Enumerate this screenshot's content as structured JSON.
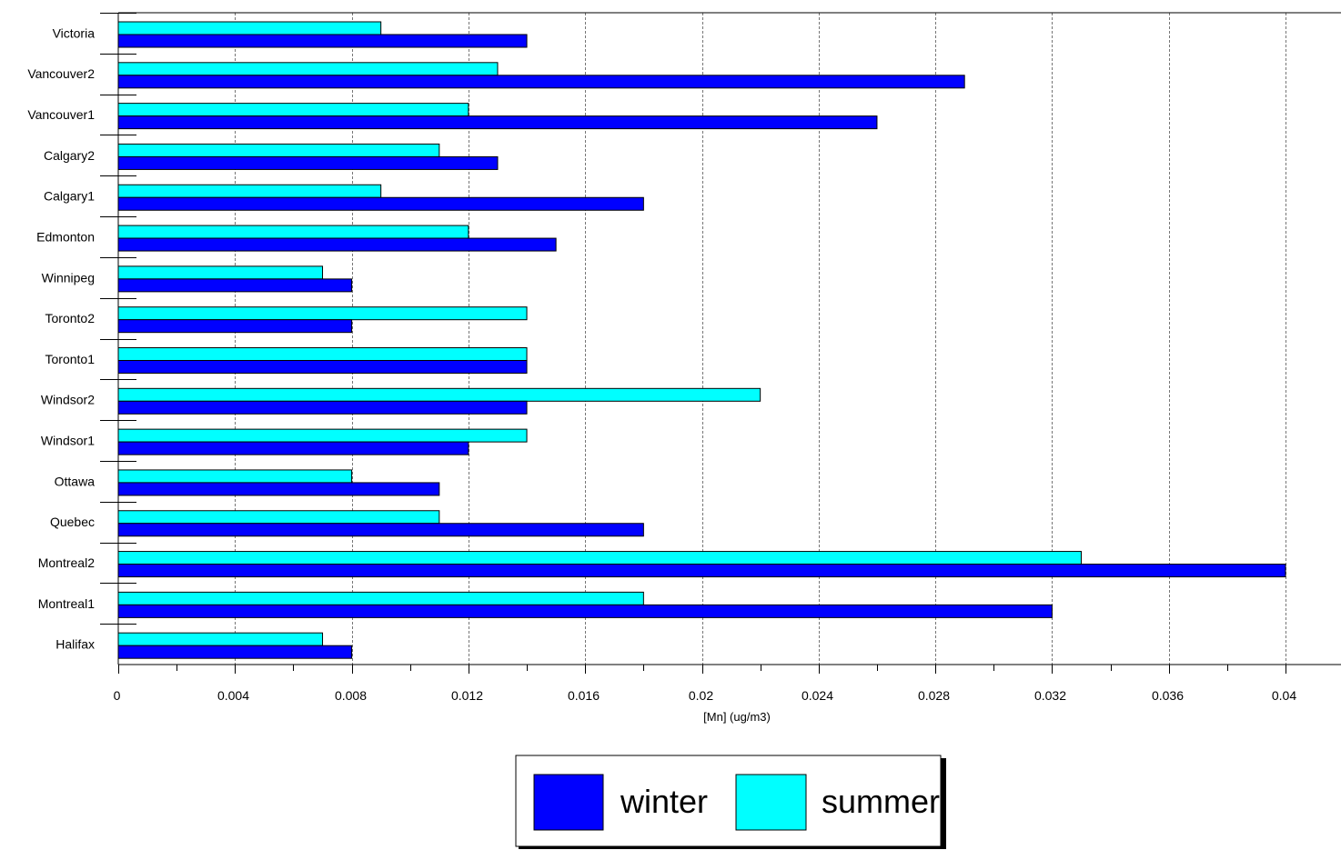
{
  "chart_data": {
    "type": "bar",
    "orientation": "horizontal",
    "categories": [
      "Victoria",
      "Vancouver2",
      "Vancouver1",
      "Calgary2",
      "Calgary1",
      "Edmonton",
      "Winnipeg",
      "Toronto2",
      "Toronto1",
      "Windsor2",
      "Windsor1",
      "Ottawa",
      "Quebec",
      "Montreal2",
      "Montreal1",
      "Halifax"
    ],
    "series": [
      {
        "name": "winter",
        "color": "#0000ff",
        "values": [
          0.014,
          0.029,
          0.026,
          0.013,
          0.018,
          0.015,
          0.008,
          0.008,
          0.014,
          0.014,
          0.012,
          0.011,
          0.018,
          0.04,
          0.032,
          0.008
        ]
      },
      {
        "name": "summer",
        "color": "#00ffff",
        "values": [
          0.009,
          0.013,
          0.012,
          0.011,
          0.009,
          0.012,
          0.007,
          0.014,
          0.014,
          0.022,
          0.014,
          0.008,
          0.011,
          0.033,
          0.018,
          0.007
        ]
      }
    ],
    "xlabel": "[Mn] (ug/m3)",
    "xlim": [
      0,
      0.042
    ],
    "xticks": [
      "0",
      "0.004",
      "0.008",
      "0.012",
      "0.016",
      "0.02",
      "0.024",
      "0.028",
      "0.032",
      "0.036",
      "0.04"
    ],
    "xtick_values": [
      0,
      0.004,
      0.008,
      0.012,
      0.016,
      0.02,
      0.024,
      0.028,
      0.032,
      0.036,
      0.04
    ],
    "grid": "vertical dashed",
    "legend_position": "bottom-center"
  },
  "legend": {
    "winter": "winter",
    "summer": "summer"
  }
}
